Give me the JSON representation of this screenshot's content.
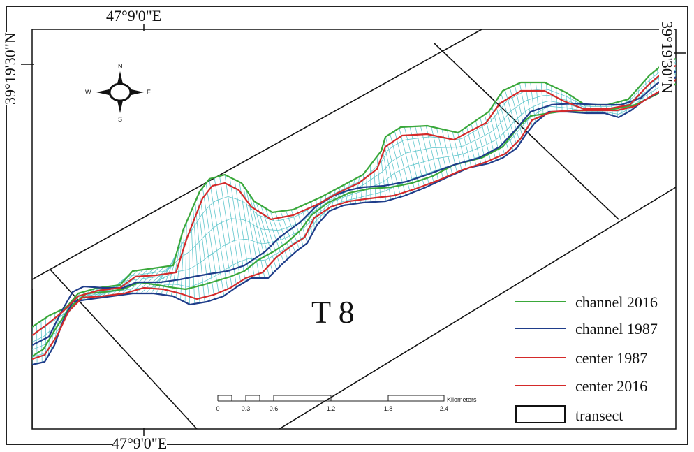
{
  "coordinates": {
    "top": "47°9'0\"E",
    "bottom": "47°9'0\"E",
    "left": "39°19'30\"N",
    "right": "39°19'30\"N"
  },
  "transect_label": "T 8",
  "compass": {
    "north": "N",
    "south": "S",
    "east": "E",
    "west": "W"
  },
  "scale_bar": {
    "unit": "Kilometers",
    "ticks": [
      "0",
      "0.3",
      "0.6",
      "1.2",
      "1.8",
      "2.4"
    ]
  },
  "legend": [
    {
      "label": "channel 2016",
      "color": "#3aa83a",
      "symbol": "line"
    },
    {
      "label": "channel 1987",
      "color": "#1f3d8a",
      "symbol": "line"
    },
    {
      "label": "center 1987",
      "color": "#d42a2a",
      "symbol": "line"
    },
    {
      "label": "center 2016",
      "color": "#d42a2a",
      "symbol": "line"
    },
    {
      "label": "transect",
      "color": "#111111",
      "symbol": "box"
    }
  ],
  "colors": {
    "mesh": "#5fc6cc",
    "transect": "#111111"
  }
}
